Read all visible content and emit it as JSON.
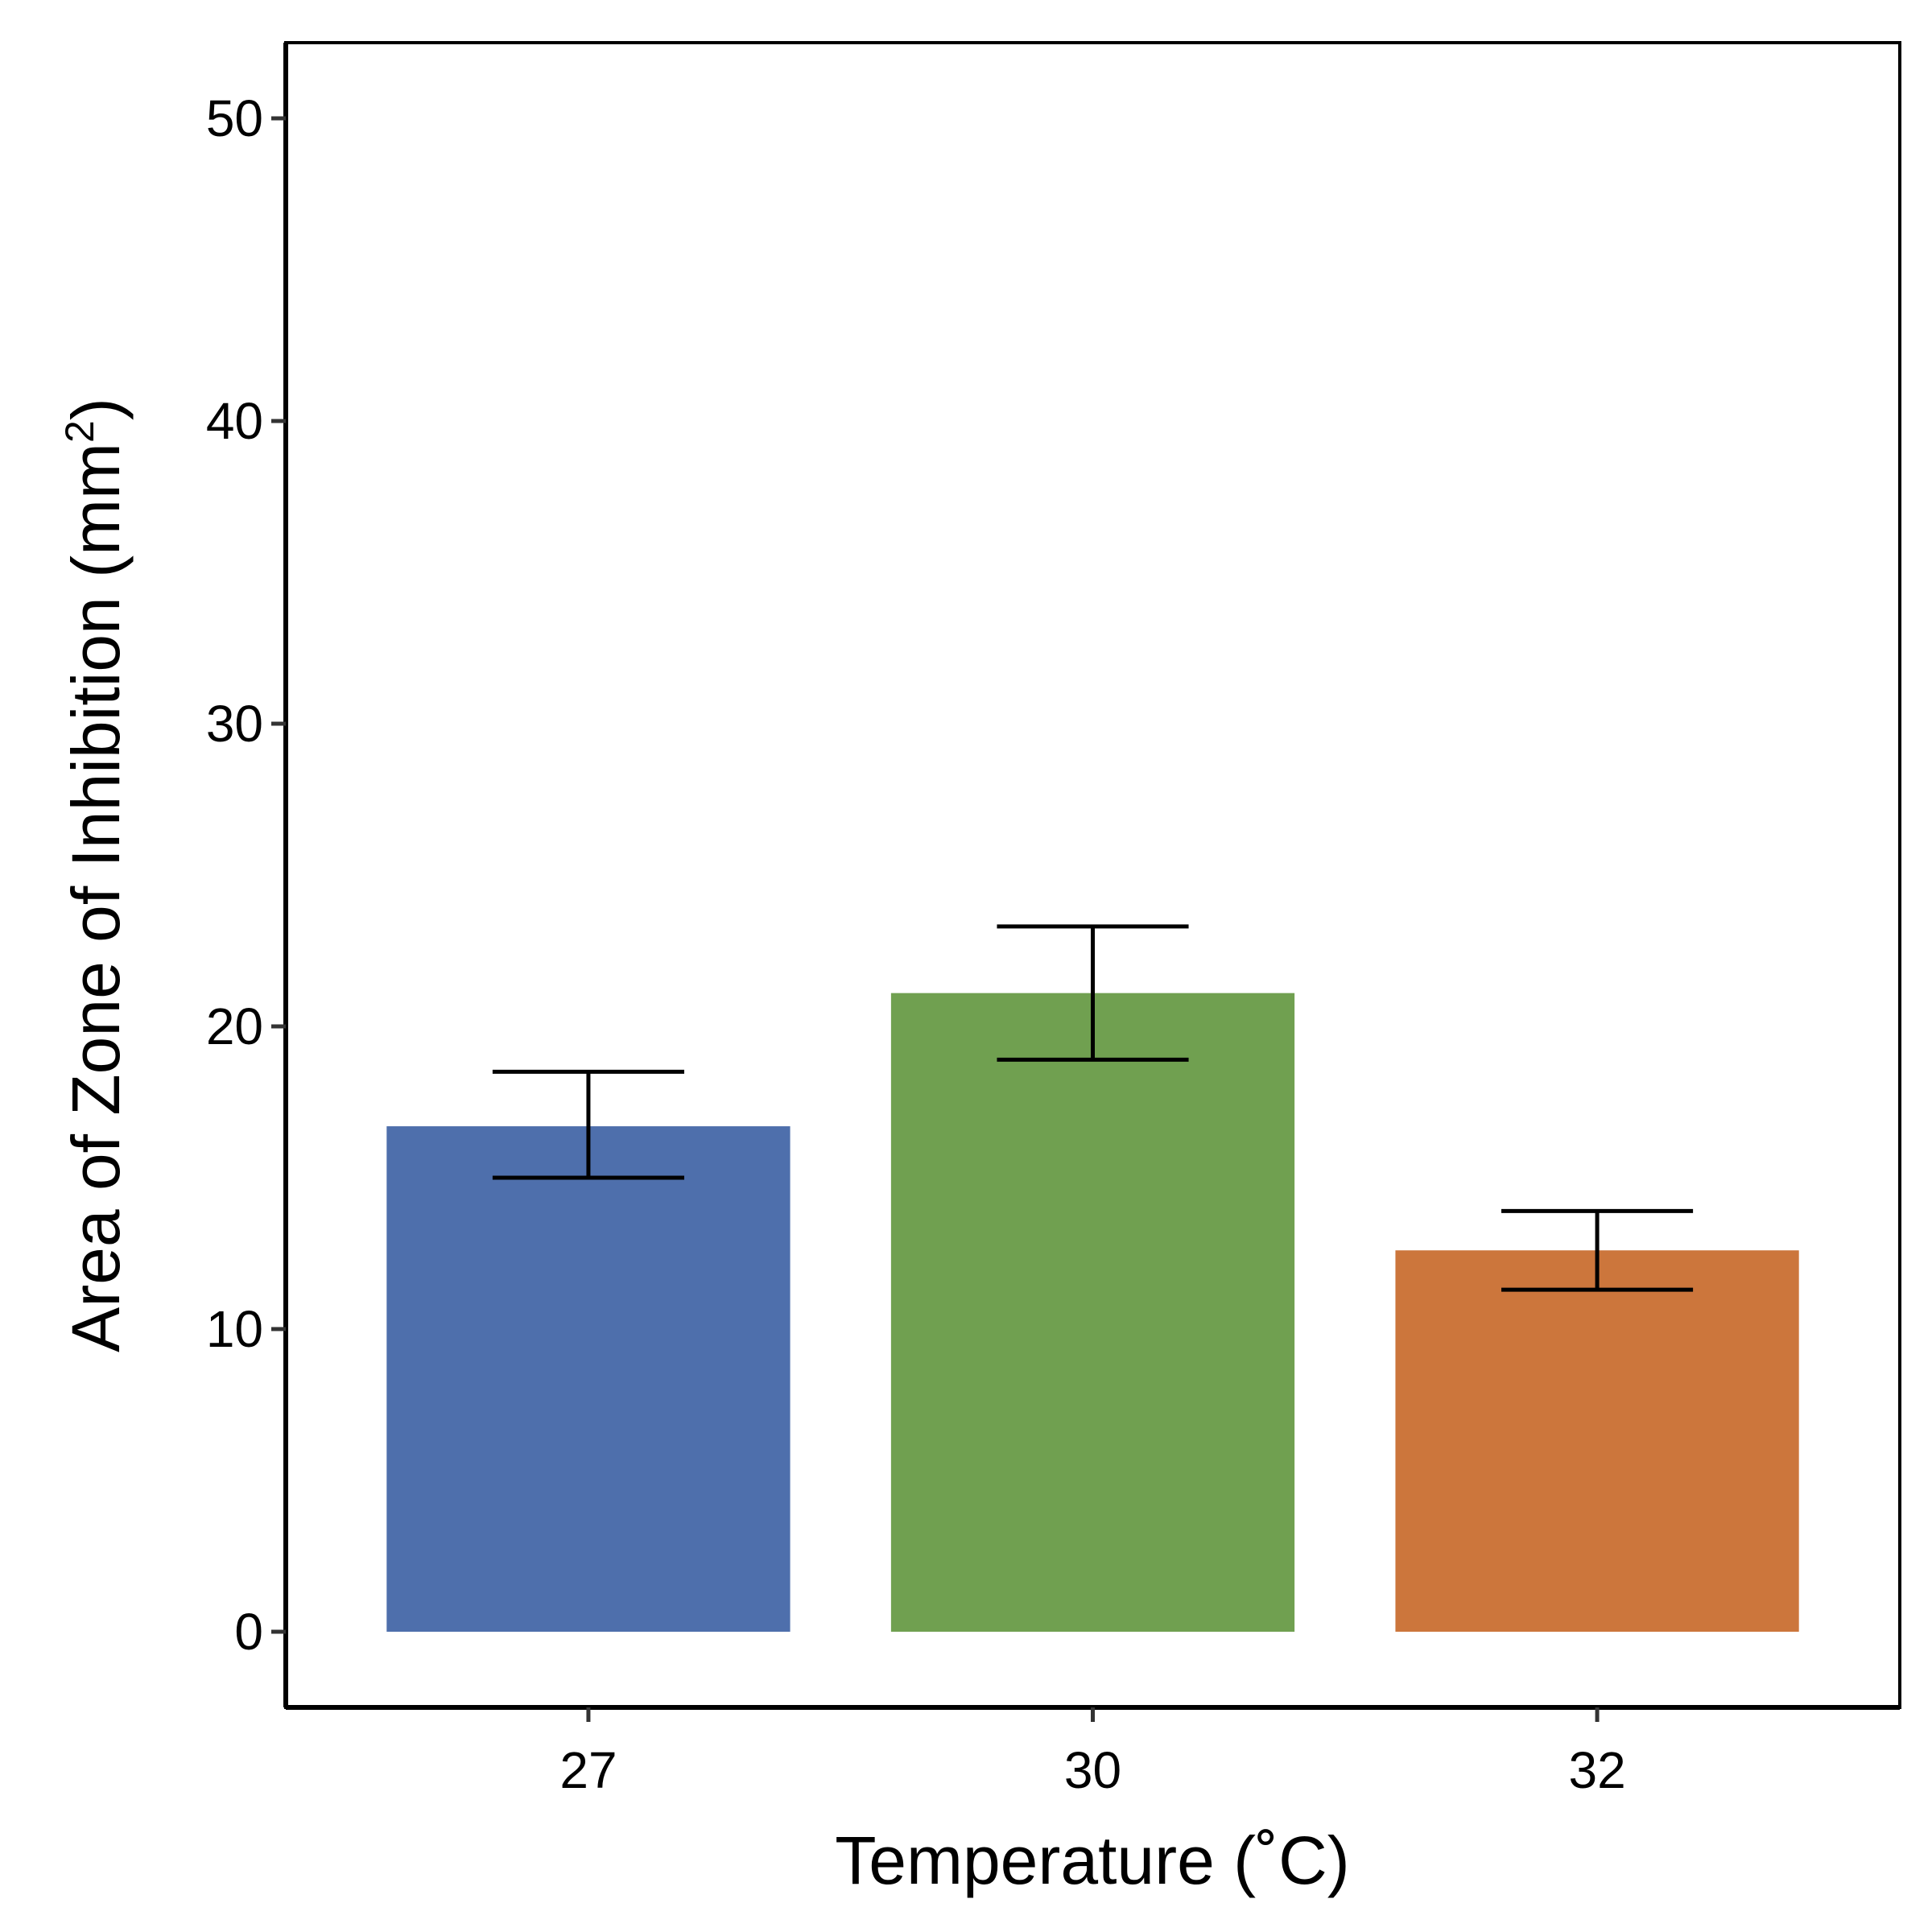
{
  "chart_data": {
    "type": "bar",
    "categories": [
      "27",
      "30",
      "32"
    ],
    "values": [
      16.7,
      21.1,
      12.6
    ],
    "error_low": [
      15.0,
      18.9,
      11.3
    ],
    "error_high": [
      18.5,
      23.3,
      13.9
    ],
    "bar_colors": [
      "#4e6fac",
      "#70a050",
      "#cc763c"
    ],
    "xlabel": "Temperature (˚C)",
    "ylabel_main": "Area of Zone of Inhibition (mm",
    "ylabel_sup": "2",
    "ylabel_close": ")",
    "ylim": [
      -2.5,
      52.5
    ],
    "yticks": [
      0,
      10,
      20,
      30,
      40,
      50
    ],
    "grid": false,
    "legend": "none"
  }
}
